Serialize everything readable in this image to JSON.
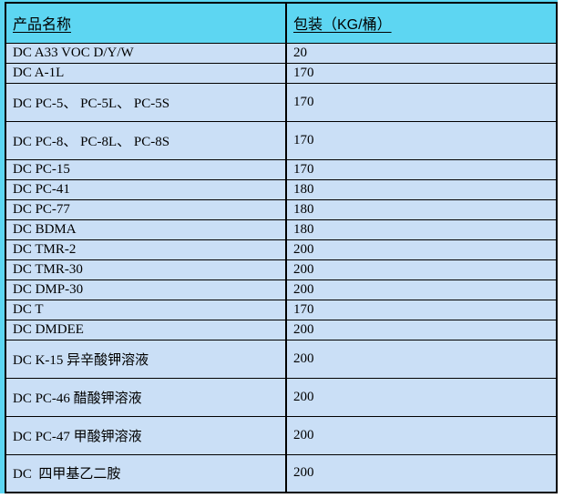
{
  "colors": {
    "page_margin": "#5dd6f2",
    "header_bg": "#5dd6f2",
    "row_bg": "#cadff6",
    "border": "#000000",
    "text": "#000000"
  },
  "table": {
    "columns": [
      {
        "label": "产品名称"
      },
      {
        "label": "包装（KG/桶）"
      }
    ],
    "rows": [
      {
        "name": "DC A33 VOC D/Y/W",
        "packing": "20",
        "tall": false
      },
      {
        "name": "DC A-1L",
        "packing": "170",
        "tall": false
      },
      {
        "name": "DC PC-5、 PC-5L、 PC-5S",
        "packing": "170",
        "tall": true
      },
      {
        "name": "DC PC-8、 PC-8L、 PC-8S",
        "packing": "170",
        "tall": true
      },
      {
        "name": "DC PC-15",
        "packing": "170",
        "tall": false
      },
      {
        "name": "DC PC-41",
        "packing": "180",
        "tall": false
      },
      {
        "name": "DC PC-77",
        "packing": "180",
        "tall": false
      },
      {
        "name": "DC BDMA",
        "packing": "180",
        "tall": false
      },
      {
        "name": "DC TMR-2",
        "packing": "200",
        "tall": false
      },
      {
        "name": "DC TMR-30",
        "packing": "200",
        "tall": false
      },
      {
        "name": "DC DMP-30",
        "packing": "200",
        "tall": false
      },
      {
        "name": "DC T",
        "packing": "170",
        "tall": false
      },
      {
        "name": "DC DMDEE",
        "packing": "200",
        "tall": false
      },
      {
        "name": "DC K-15 异辛酸钾溶液",
        "packing": "200",
        "tall": true
      },
      {
        "name": "DC PC-46 醋酸钾溶液",
        "packing": "200",
        "tall": true
      },
      {
        "name": "DC PC-47 甲酸钾溶液",
        "packing": "200",
        "tall": true
      },
      {
        "name": "DC  四甲基乙二胺",
        "packing": "200",
        "tall": true
      }
    ]
  }
}
